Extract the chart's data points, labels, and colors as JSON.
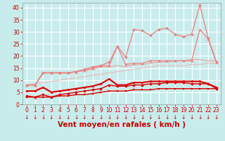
{
  "title": "",
  "xlabel": "Vent moyen/en rafales ( km/h )",
  "ylabel": "",
  "background_color": "#c8ecec",
  "grid_color": "#aad4d4",
  "xlim": [
    -0.5,
    23.5
  ],
  "ylim": [
    0,
    42
  ],
  "yticks": [
    0,
    5,
    10,
    15,
    20,
    25,
    30,
    35,
    40
  ],
  "xticks": [
    0,
    1,
    2,
    3,
    4,
    5,
    6,
    7,
    8,
    9,
    10,
    11,
    12,
    13,
    14,
    15,
    16,
    17,
    18,
    19,
    20,
    21,
    22,
    23
  ],
  "x": [
    0,
    1,
    2,
    3,
    4,
    5,
    6,
    7,
    8,
    9,
    10,
    11,
    12,
    13,
    14,
    15,
    16,
    17,
    18,
    19,
    20,
    21,
    22,
    23
  ],
  "lines": [
    {
      "y": [
        3.0,
        3.0,
        3.0,
        3.0,
        3.5,
        3.5,
        4.0,
        4.0,
        4.5,
        5.0,
        5.5,
        5.5,
        5.5,
        6.0,
        6.0,
        6.0,
        6.5,
        6.5,
        6.5,
        6.5,
        6.5,
        6.5,
        6.5,
        6.5
      ],
      "color": "#dd0000",
      "linewidth": 1.0,
      "marker": "s",
      "markersize": 2.0,
      "alpha": 1.0,
      "zorder": 6
    },
    {
      "y": [
        3.5,
        3.0,
        4.0,
        3.0,
        4.0,
        4.5,
        5.0,
        5.5,
        6.0,
        6.5,
        8.0,
        7.5,
        7.5,
        8.0,
        8.0,
        8.5,
        8.5,
        9.0,
        9.0,
        9.0,
        8.5,
        8.5,
        8.5,
        6.5
      ],
      "color": "#dd0000",
      "linewidth": 1.0,
      "marker": "D",
      "markersize": 2.0,
      "alpha": 1.0,
      "zorder": 6
    },
    {
      "y": [
        5.5,
        5.5,
        7.0,
        5.0,
        5.5,
        6.0,
        6.5,
        7.0,
        7.5,
        8.5,
        10.5,
        8.0,
        8.0,
        9.0,
        9.0,
        9.5,
        9.5,
        9.5,
        9.5,
        9.5,
        9.5,
        9.5,
        8.5,
        7.0
      ],
      "color": "#dd0000",
      "linewidth": 1.5,
      "marker": "o",
      "markersize": 2.0,
      "alpha": 1.0,
      "zorder": 6
    },
    {
      "y": [
        8.0,
        8.0,
        13.0,
        13.0,
        13.0,
        13.0,
        13.5,
        14.5,
        15.5,
        16.0,
        17.5,
        24.0,
        19.5,
        31.0,
        30.5,
        28.5,
        31.0,
        31.5,
        29.0,
        28.0,
        29.0,
        41.0,
        27.5,
        17.5
      ],
      "color": "#e88080",
      "linewidth": 1.0,
      "marker": "D",
      "markersize": 2.0,
      "alpha": 0.9,
      "zorder": 3
    },
    {
      "y": [
        8.0,
        8.0,
        13.0,
        13.0,
        13.0,
        13.0,
        13.5,
        14.0,
        15.0,
        16.0,
        16.0,
        24.0,
        16.5,
        17.0,
        17.0,
        18.0,
        18.0,
        18.0,
        18.0,
        18.0,
        18.0,
        31.0,
        27.0,
        17.5
      ],
      "color": "#e88080",
      "linewidth": 1.0,
      "marker": "^",
      "markersize": 2.5,
      "alpha": 0.9,
      "zorder": 4
    },
    {
      "y": [
        8.0,
        8.0,
        13.0,
        13.0,
        13.0,
        13.0,
        13.5,
        14.0,
        14.5,
        15.5,
        15.5,
        16.0,
        15.5,
        16.5,
        16.5,
        17.0,
        17.5,
        17.5,
        18.0,
        18.0,
        18.5,
        18.5,
        18.0,
        18.0
      ],
      "color": "#f0a0a0",
      "linewidth": 1.0,
      "marker": "",
      "markersize": 0,
      "alpha": 0.85,
      "zorder": 2
    },
    {
      "y": [
        8.0,
        8.5,
        9.0,
        9.5,
        10.0,
        10.5,
        11.0,
        11.5,
        12.0,
        12.5,
        13.0,
        13.5,
        14.0,
        14.5,
        15.0,
        15.5,
        16.0,
        16.0,
        16.0,
        16.0,
        16.5,
        16.5,
        17.0,
        17.0
      ],
      "color": "#f0b0b0",
      "linewidth": 0.9,
      "marker": "",
      "markersize": 0,
      "alpha": 0.75,
      "zorder": 1
    }
  ],
  "wind_arrows": {
    "x": [
      0,
      1,
      2,
      3,
      4,
      5,
      6,
      7,
      8,
      9,
      10,
      11,
      12,
      13,
      14,
      15,
      16,
      17,
      18,
      19,
      20,
      21,
      22,
      23
    ],
    "color": "#cc0000",
    "fontsize": 5.5
  },
  "font_color": "#cc0000",
  "tick_fontsize": 5.5,
  "label_fontsize": 7.5
}
